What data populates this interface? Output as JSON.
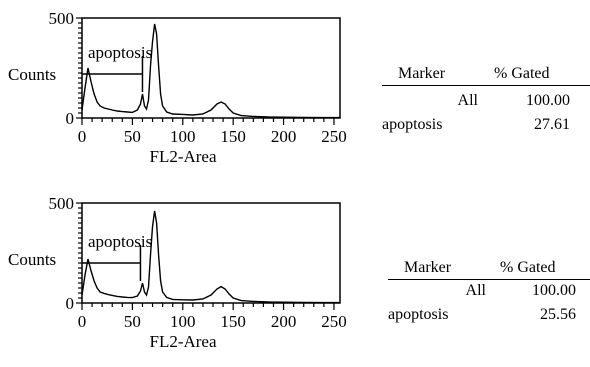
{
  "chart_data": [
    {
      "type": "histogram",
      "xlabel": "FL2-Area",
      "ylabel": "Counts",
      "xlim": [
        0,
        256
      ],
      "ylim": [
        0,
        500
      ],
      "x_ticks": [
        "0",
        "50",
        "100",
        "150",
        "200",
        "250"
      ],
      "y_ticks": [
        "0",
        "500"
      ],
      "marker": {
        "label": "apoptosis",
        "range": [
          0,
          60
        ],
        "level": 220
      },
      "series": [
        {
          "x": [
            0,
            3,
            6,
            9,
            12,
            15,
            18,
            22,
            26,
            30,
            35,
            40,
            45,
            50,
            55,
            58,
            60,
            62,
            64,
            66,
            68,
            70,
            72,
            74,
            76,
            78,
            80,
            84,
            90,
            100,
            110,
            120,
            128,
            134,
            138,
            142,
            146,
            150,
            158,
            170,
            185,
            200,
            220,
            240,
            256
          ],
          "y": [
            40,
            150,
            250,
            180,
            120,
            80,
            60,
            50,
            45,
            40,
            35,
            32,
            30,
            28,
            40,
            70,
            120,
            60,
            45,
            90,
            260,
            380,
            470,
            420,
            260,
            120,
            60,
            30,
            20,
            18,
            15,
            20,
            40,
            70,
            80,
            70,
            45,
            25,
            12,
            8,
            5,
            4,
            3,
            2,
            2
          ]
        }
      ],
      "stats": {
        "headers": [
          "Marker",
          "% Gated"
        ],
        "rows": [
          {
            "marker": "All",
            "gated": "100.00"
          },
          {
            "marker": "apoptosis",
            "gated": "27.61"
          }
        ]
      }
    },
    {
      "type": "histogram",
      "xlabel": "FL2-Area",
      "ylabel": "Counts",
      "xlim": [
        0,
        256
      ],
      "ylim": [
        0,
        500
      ],
      "x_ticks": [
        "0",
        "50",
        "100",
        "150",
        "200",
        "250"
      ],
      "y_ticks": [
        "0",
        "500"
      ],
      "marker": {
        "label": "apoptosis",
        "range": [
          0,
          58
        ],
        "level": 200
      },
      "series": [
        {
          "x": [
            0,
            3,
            6,
            9,
            12,
            15,
            18,
            22,
            26,
            30,
            35,
            40,
            45,
            50,
            55,
            58,
            60,
            62,
            64,
            66,
            68,
            70,
            72,
            74,
            76,
            78,
            80,
            84,
            90,
            100,
            110,
            120,
            128,
            134,
            138,
            142,
            146,
            150,
            158,
            170,
            185,
            200,
            220,
            240,
            256
          ],
          "y": [
            40,
            140,
            220,
            160,
            110,
            75,
            55,
            48,
            42,
            38,
            33,
            30,
            28,
            27,
            35,
            60,
            100,
            55,
            40,
            80,
            240,
            380,
            460,
            400,
            240,
            110,
            55,
            28,
            18,
            16,
            15,
            20,
            40,
            70,
            82,
            70,
            45,
            25,
            12,
            8,
            5,
            4,
            3,
            2,
            2
          ]
        }
      ],
      "stats": {
        "headers": [
          "Marker",
          "% Gated"
        ],
        "rows": [
          {
            "marker": "All",
            "gated": "100.00"
          },
          {
            "marker": "apoptosis",
            "gated": "25.56"
          }
        ]
      }
    }
  ]
}
